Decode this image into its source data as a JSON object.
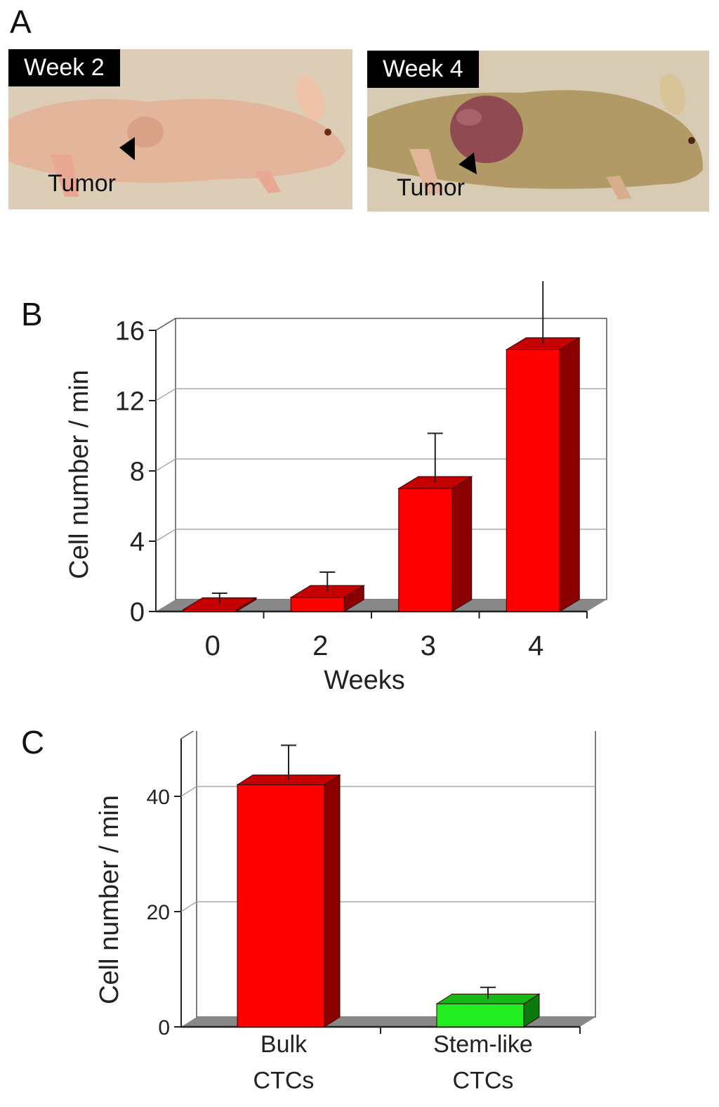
{
  "panels": {
    "a": {
      "letter": "A",
      "photos": [
        {
          "label": "Week 2",
          "annotation": "Tumor"
        },
        {
          "label": "Week 4",
          "annotation": "Tumor"
        }
      ]
    },
    "b": {
      "letter": "B"
    },
    "c": {
      "letter": "C"
    }
  },
  "colors": {
    "red_front": "#ff0000",
    "red_side": "#8b0000",
    "red_top": "#c40000",
    "green_front": "#22ee22",
    "green_side": "#0a7a0a",
    "green_top": "#16b816",
    "floor": "#888888",
    "grid": "#9a9a9a"
  },
  "chart_data": [
    {
      "panel": "B",
      "type": "bar",
      "style": "3d",
      "categories": [
        "0",
        "2",
        "3",
        "4"
      ],
      "values": [
        0.1,
        0.8,
        7.0,
        14.9
      ],
      "errors": [
        0.6,
        1.1,
        2.8,
        3.7
      ],
      "xlabel": "Weeks",
      "ylabel": "Cell number / min",
      "ylim": [
        0,
        16
      ],
      "yticks": [
        "0",
        "4",
        "8",
        "12",
        "16"
      ],
      "grid": true
    },
    {
      "panel": "C",
      "type": "bar",
      "style": "3d",
      "categories": [
        [
          "Bulk",
          "CTCs"
        ],
        [
          "Stem-like",
          "CTCs"
        ]
      ],
      "values": [
        42,
        4
      ],
      "errors": [
        6,
        2
      ],
      "bar_colors": [
        "red",
        "green"
      ],
      "xlabel": "",
      "ylabel": "Cell number / min",
      "ylim": [
        0,
        50
      ],
      "yticks": [
        "0",
        "20",
        "40"
      ],
      "grid": true
    }
  ]
}
